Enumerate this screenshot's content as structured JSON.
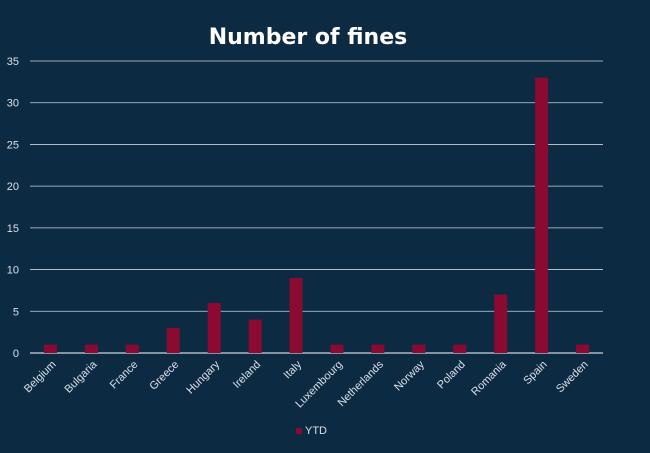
{
  "chart_data": {
    "type": "bar",
    "title": "Number of fines",
    "xlabel": "",
    "ylabel": "",
    "ylim": [
      0,
      35
    ],
    "yticks": [
      0,
      5,
      10,
      15,
      20,
      25,
      30,
      35
    ],
    "grid": true,
    "legend_position": "bottom",
    "categories": [
      "Belgium",
      "Bulgaria",
      "France",
      "Greece",
      "Hungary",
      "Ireland",
      "Italy",
      "Luxembourg",
      "Netherlands",
      "Norway",
      "Poland",
      "Romania",
      "Spain",
      "Sweden"
    ],
    "series": [
      {
        "name": "YTD",
        "values": [
          1,
          1,
          1,
          3,
          6,
          4,
          9,
          1,
          1,
          1,
          1,
          7,
          33,
          1
        ],
        "color": "#8b0a32"
      }
    ]
  },
  "colors": {
    "background": "#0d2a43",
    "gridline": "#c9d3dc",
    "text": "#d8e0e8",
    "title": "#ffffff"
  }
}
